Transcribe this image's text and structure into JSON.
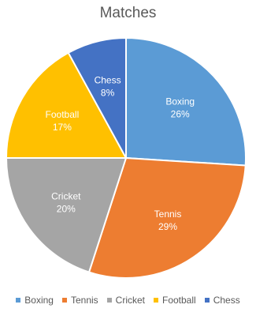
{
  "chart_data": {
    "type": "pie",
    "title": "Matches",
    "categories": [
      "Boxing",
      "Tennis",
      "Cricket",
      "Football",
      "Chess"
    ],
    "values": [
      26,
      29,
      20,
      17,
      8
    ],
    "labels": [
      "26%",
      "29%",
      "20%",
      "17%",
      "8%"
    ],
    "colors": [
      "#5B9BD5",
      "#ED7D31",
      "#A5A5A5",
      "#FFC000",
      "#4472C4"
    ],
    "legend_position": "bottom"
  }
}
